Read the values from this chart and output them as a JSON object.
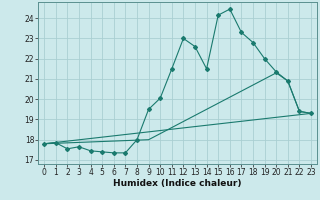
{
  "xlabel": "Humidex (Indice chaleur)",
  "background_color": "#cce9eb",
  "grid_color": "#aacfd2",
  "line_color": "#1a7a6e",
  "xlim": [
    -0.5,
    23.5
  ],
  "ylim": [
    16.8,
    24.8
  ],
  "yticks": [
    17,
    18,
    19,
    20,
    21,
    22,
    23,
    24
  ],
  "xticks": [
    0,
    1,
    2,
    3,
    4,
    5,
    6,
    7,
    8,
    9,
    10,
    11,
    12,
    13,
    14,
    15,
    16,
    17,
    18,
    19,
    20,
    21,
    22,
    23
  ],
  "series0_x": [
    0,
    1,
    2,
    3,
    4,
    5,
    6,
    7,
    8,
    9,
    10,
    11,
    12,
    13,
    14,
    15,
    16,
    17,
    18,
    19,
    20,
    21,
    22,
    23
  ],
  "series0_y": [
    17.8,
    17.85,
    17.55,
    17.65,
    17.45,
    17.4,
    17.35,
    17.35,
    18.0,
    19.5,
    20.05,
    21.5,
    23.0,
    22.6,
    21.5,
    24.15,
    24.45,
    23.3,
    22.8,
    22.0,
    21.35,
    20.9,
    19.4,
    19.3
  ],
  "series1_x": [
    0,
    9,
    20,
    21,
    22,
    23
  ],
  "series1_y": [
    17.8,
    18.0,
    21.3,
    20.9,
    19.4,
    19.3
  ],
  "series2_x": [
    0,
    23
  ],
  "series2_y": [
    17.8,
    19.3
  ]
}
